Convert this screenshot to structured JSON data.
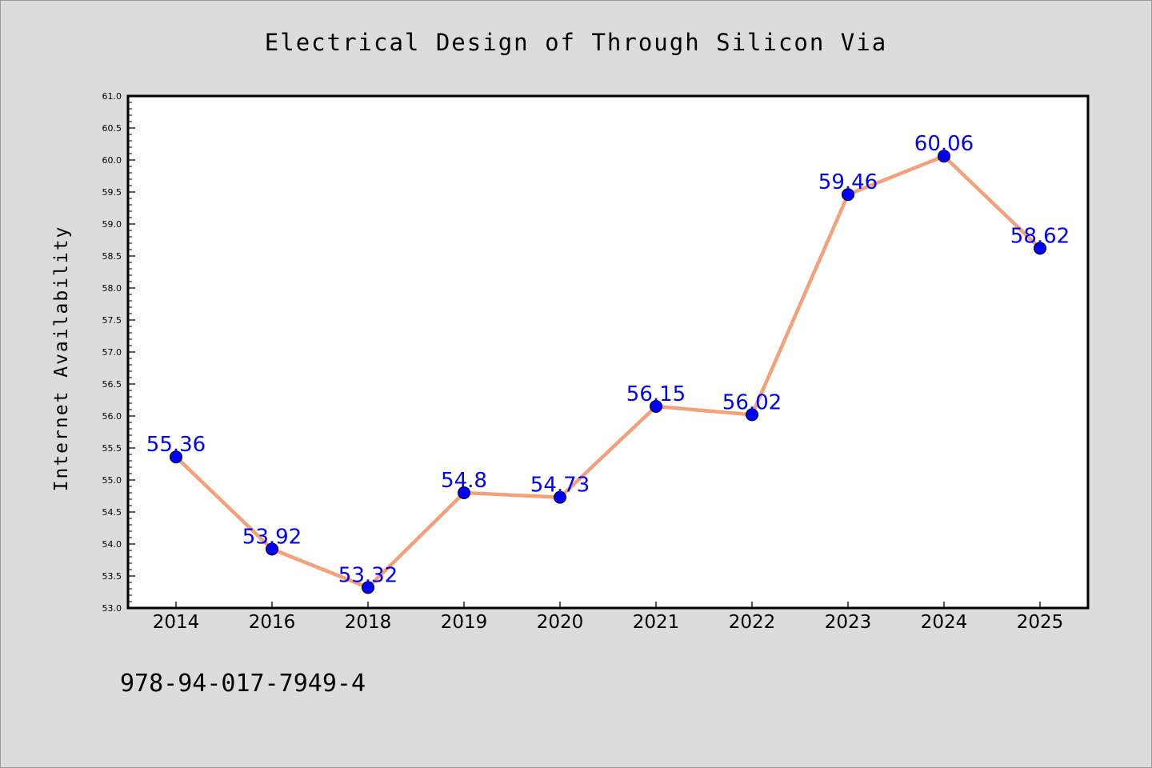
{
  "chart_data": {
    "type": "line",
    "title": "Electrical Design of Through Silicon Via",
    "xlabel": "",
    "ylabel": "Internet Availability",
    "categories": [
      "2014",
      "2016",
      "2018",
      "2019",
      "2020",
      "2021",
      "2022",
      "2023",
      "2024",
      "2025"
    ],
    "series": [
      {
        "values": [
          55.36,
          53.92,
          53.32,
          54.8,
          54.73,
          56.15,
          56.02,
          59.46,
          60.06,
          58.62
        ],
        "labels": [
          "55.36",
          "53.92",
          "53.32",
          "54.8",
          "54.73",
          "56.15",
          "56.02",
          "59.46",
          "60.06",
          "58.62"
        ],
        "line_color": "#f4a07a",
        "marker_color": "#0000ff"
      }
    ],
    "ylim": [
      53.0,
      61.0
    ],
    "yticks": [
      "53.0",
      "53.5",
      "54.0",
      "54.5",
      "55.0",
      "55.5",
      "56.0",
      "56.5",
      "57.0",
      "57.5",
      "58.0",
      "58.5",
      "59.0",
      "59.5",
      "60.0",
      "60.5",
      "61.0"
    ],
    "grid": false,
    "legend": "none",
    "background": "#dcdcdc",
    "plot_background": "#ffffff",
    "label_color": "#0000ff"
  },
  "footer": {
    "text": "978-94-017-7949-4"
  }
}
